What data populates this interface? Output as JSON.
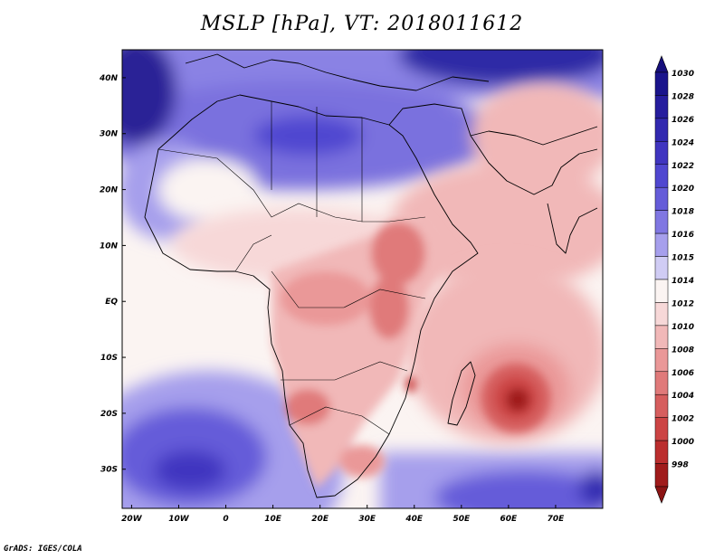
{
  "title": "MSLP [hPa], VT: 2018011612",
  "credit": "GrADS: IGES/COLA",
  "map": {
    "lon_range": [
      -22,
      80
    ],
    "lat_range": [
      -37,
      45
    ],
    "lon_ticks": [
      {
        "value": -20,
        "label": "20W"
      },
      {
        "value": -10,
        "label": "10W"
      },
      {
        "value": 0,
        "label": "0"
      },
      {
        "value": 10,
        "label": "10E"
      },
      {
        "value": 20,
        "label": "20E"
      },
      {
        "value": 30,
        "label": "30E"
      },
      {
        "value": 40,
        "label": "40E"
      },
      {
        "value": 50,
        "label": "50E"
      },
      {
        "value": 60,
        "label": "60E"
      },
      {
        "value": 70,
        "label": "70E"
      }
    ],
    "lat_ticks": [
      {
        "value": 40,
        "label": "40N"
      },
      {
        "value": 30,
        "label": "30N"
      },
      {
        "value": 20,
        "label": "20N"
      },
      {
        "value": 10,
        "label": "10N"
      },
      {
        "value": 0,
        "label": "EQ"
      },
      {
        "value": -10,
        "label": "10S"
      },
      {
        "value": -20,
        "label": "20S"
      },
      {
        "value": -30,
        "label": "30S"
      }
    ]
  },
  "colorbar": {
    "levels": [
      {
        "label": "1030",
        "color": "#1a148c"
      },
      {
        "label": "1028",
        "color": "#261d9e"
      },
      {
        "label": "1026",
        "color": "#3229b0"
      },
      {
        "label": "1024",
        "color": "#4035c0"
      },
      {
        "label": "1022",
        "color": "#5047d0"
      },
      {
        "label": "1020",
        "color": "#655cd9"
      },
      {
        "label": "1018",
        "color": "#8077e2"
      },
      {
        "label": "1016",
        "color": "#a69fec"
      },
      {
        "label": "1015",
        "color": "#d0ccf4"
      },
      {
        "label": "1014",
        "color": "#fbf4f2"
      },
      {
        "label": "1012",
        "color": "#f7d8d8"
      },
      {
        "label": "1010",
        "color": "#f1b8b8"
      },
      {
        "label": "1008",
        "color": "#ea9898"
      },
      {
        "label": "1006",
        "color": "#e07a7a"
      },
      {
        "label": "1004",
        "color": "#d65e5e"
      },
      {
        "label": "1002",
        "color": "#cc4444"
      },
      {
        "label": "1000",
        "color": "#bb2e2e"
      },
      {
        "label": "998",
        "color": "#a01b1b"
      }
    ],
    "top_arrow_color": "#160f7c",
    "bottom_arrow_color": "#8c1414"
  }
}
